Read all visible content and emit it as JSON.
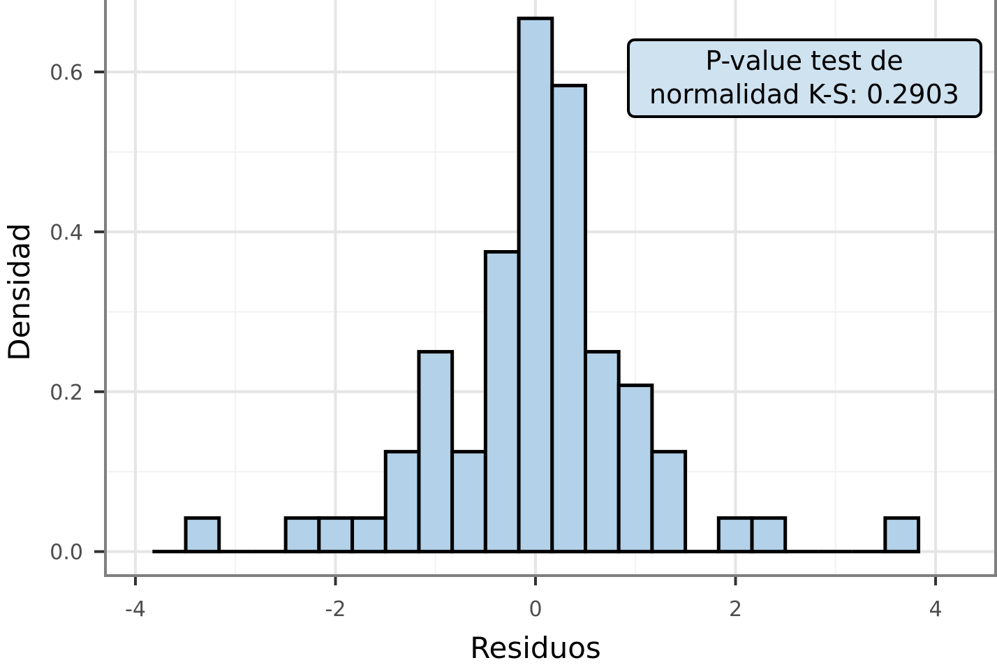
{
  "chart_data": {
    "type": "bar",
    "subtype": "histogram",
    "xlabel": "Residuos",
    "ylabel": "Densidad",
    "xlim": [
      -4.3,
      4.6
    ],
    "ylim": [
      -0.03,
      0.69
    ],
    "x_ticks": [
      -4,
      -2,
      0,
      2,
      4
    ],
    "x_tick_labels": [
      "-4",
      "-2",
      "0",
      "2",
      "4"
    ],
    "y_ticks": [
      0.0,
      0.2,
      0.4,
      0.6
    ],
    "y_tick_labels": [
      "0.0",
      "0.2",
      "0.4",
      "0.6"
    ],
    "grid": true,
    "bin_start": -3.83,
    "bin_width": 0.333,
    "values": [
      0,
      0.042,
      0,
      0,
      0.042,
      0.042,
      0.042,
      0.125,
      0.25,
      0.125,
      0.375,
      0.667,
      0.583,
      0.25,
      0.208,
      0.125,
      0,
      0.042,
      0.042,
      0,
      0,
      0,
      0.042
    ],
    "bar_fill": "#b3d1e8",
    "bar_edge": "#000000",
    "annotation": {
      "lines": [
        "P-value test de",
        "normalidad K-S: 0.2903"
      ],
      "fill": "#cfe2f0",
      "position": "top-right"
    }
  }
}
